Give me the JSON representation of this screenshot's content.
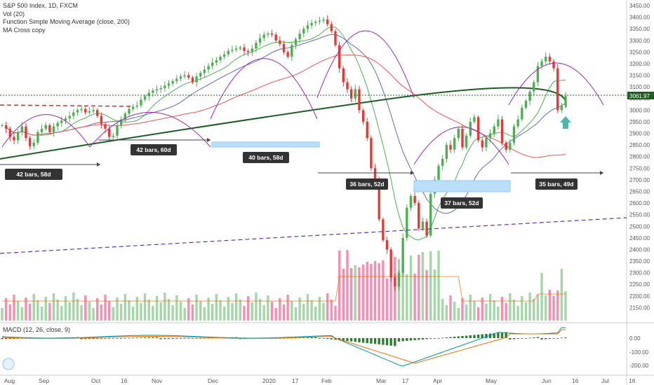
{
  "legend": {
    "title": "S&P 500 Index, 1D, FXCM",
    "vol": "Vol (20)",
    "sma": "Function Simple Moving Average (close, 200)",
    "cross": "MA Cross copy"
  },
  "macd_label": "MACD (12, 26, close, 9)",
  "colors": {
    "up": "#4caf50",
    "down": "#e53935",
    "upVol": "#a5d6a7",
    "downVol": "#f48fb1",
    "sma200": "#1b5e20",
    "purple": "#9c27b0",
    "panel": "#333333"
  },
  "chart_data": {
    "type": "candlestick",
    "price_axis": {
      "min": 2100,
      "max": 3450,
      "ticks": [
        "3450.00",
        "3400.00",
        "3350.00",
        "3300.00",
        "3250.00",
        "3200.00",
        "3150.00",
        "3100.00",
        "3050.00",
        "3000.00",
        "2950.00",
        "2900.00",
        "2850.00",
        "2800.00",
        "2750.00",
        "2700.00",
        "2650.00",
        "2600.00",
        "2550.00",
        "2500.00",
        "2450.00",
        "2400.00",
        "2350.00",
        "2300.00",
        "2250.00",
        "2200.00",
        "2150.00"
      ]
    },
    "last_price": "3061.97",
    "macd_axis": {
      "ticks": [
        "0.00",
        "-100.00",
        "-200.00"
      ]
    },
    "x_labels": [
      "Aug",
      "Sep",
      "Oct",
      "16",
      "Nov",
      "Dec",
      "2020",
      "17",
      "Feb",
      "Mar",
      "17",
      "Apr",
      "May",
      "Jun",
      "16",
      "Jul",
      "16"
    ],
    "bar_count_labels": [
      "42 bars, 58d",
      "42 bars, 60d",
      "40 bars, 58d",
      "36 bars, 52d",
      "37 bars, 52d",
      "35 bars, 49d"
    ],
    "series_close": [
      2935,
      2920,
      2885,
      2870,
      2905,
      2930,
      2880,
      2845,
      2860,
      2905,
      2920,
      2935,
      2905,
      2930,
      2945,
      2955,
      2965,
      2975,
      2990,
      3000,
      3005,
      2990,
      2995,
      3000,
      2975,
      2940,
      2920,
      2885,
      2890,
      2935,
      2960,
      2985,
      3005,
      3015,
      3020,
      3045,
      3060,
      3075,
      3085,
      3090,
      3095,
      3105,
      3115,
      3125,
      3135,
      3145,
      3150,
      3140,
      3120,
      3145,
      3160,
      3175,
      3190,
      3205,
      3215,
      3230,
      3240,
      3255,
      3260,
      3265,
      3270,
      3255,
      3250,
      3265,
      3290,
      3310,
      3325,
      3330,
      3325,
      3300,
      3285,
      3250,
      3230,
      3280,
      3305,
      3330,
      3350,
      3365,
      3375,
      3380,
      3385,
      3390,
      3370,
      3340,
      3280,
      3180,
      3120,
      3090,
      3050,
      3090,
      3000,
      2950,
      2880,
      2750,
      2700,
      2530,
      2440,
      2400,
      2280,
      2240,
      2300,
      2450,
      2580,
      2630,
      2600,
      2490,
      2520,
      2460,
      2640,
      2700,
      2760,
      2790,
      2850,
      2830,
      2880,
      2920,
      2840,
      2890,
      2950,
      2970,
      2870,
      2840,
      2880,
      2900,
      2930,
      2960,
      2860,
      2830,
      2860,
      2930,
      2960,
      3010,
      3040,
      3080,
      3120,
      3190,
      3210,
      3230,
      3210,
      3180,
      3000,
      3020,
      3061
    ]
  }
}
